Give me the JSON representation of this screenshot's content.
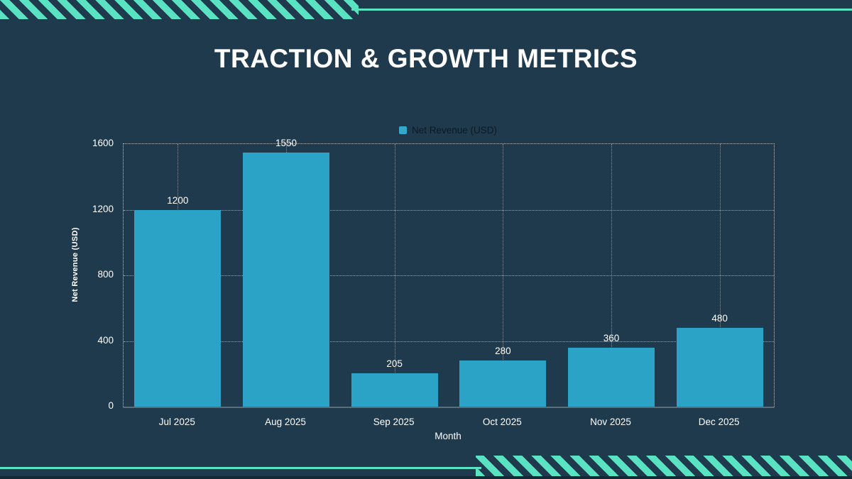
{
  "slide": {
    "title": "TRACTION & GROWTH METRICS"
  },
  "colors": {
    "background": "#1f3a4d",
    "stripe_accent": "#5ae3c3",
    "bar_fill": "#2ba3c7",
    "legend_marker": "#35a9cc",
    "legend_text": "#0c1923",
    "axis_text": "#ffffff",
    "baseline_axis": "#5a6e7c"
  },
  "chart_data": {
    "type": "bar",
    "title": "",
    "series_label": "Net Revenue (USD)",
    "categories": [
      "Jul 2025",
      "Aug 2025",
      "Sep 2025",
      "Oct 2025",
      "Nov 2025",
      "Dec 2025"
    ],
    "values": [
      1200,
      1550,
      205,
      280,
      360,
      480
    ],
    "xlabel": "Month",
    "ylabel": "Net Revenue (USD)",
    "ylim": [
      0,
      1600
    ],
    "yticks": [
      0,
      400,
      800,
      1200,
      1600
    ],
    "grid": "dotted",
    "legend_position": "top-center",
    "value_labels": true
  }
}
